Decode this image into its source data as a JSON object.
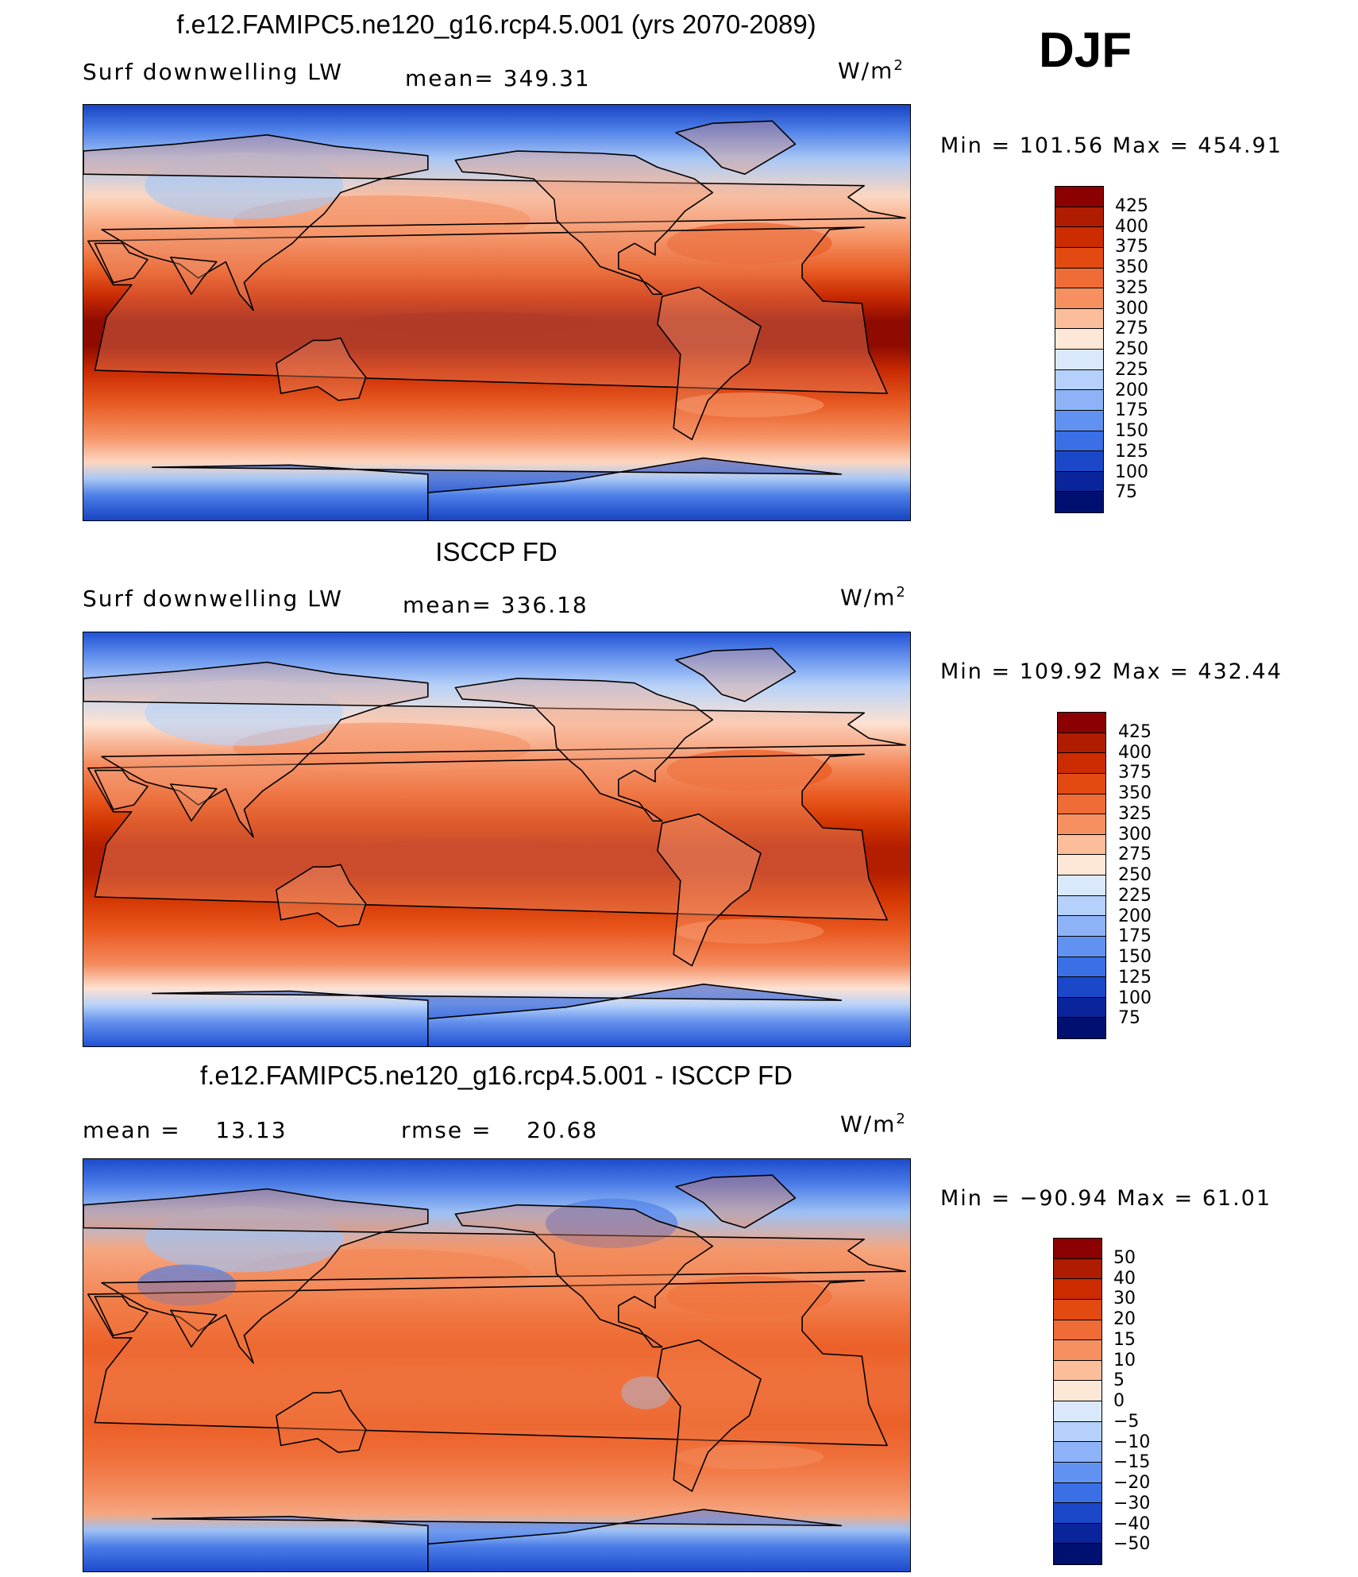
{
  "season": "DJF",
  "panels": [
    {
      "title": "f.e12.FAMIPC5.ne120_g16.rcp4.5.001 (yrs 2070-2089)",
      "left_label": "Surf downwelling LW",
      "center_label": "mean= 349.31",
      "unit_base": "W/m",
      "unit_exp": "2",
      "min_label": "Min",
      "min_value": "101.56",
      "max_label": "Max",
      "max_value": "454.91",
      "legend": [
        "425",
        "400",
        "375",
        "350",
        "325",
        "300",
        "275",
        "250",
        "225",
        "200",
        "175",
        "150",
        "125",
        "100",
        "75"
      ],
      "legend_colors": [
        "#8b0000",
        "#b01c00",
        "#cc2c00",
        "#e24a12",
        "#ef6c36",
        "#f69060",
        "#fbbd9a",
        "#fde7d7",
        "#d9e9fb",
        "#b4d0fb",
        "#8db2f8",
        "#6292f1",
        "#3a6fe6",
        "#1a48c9",
        "#0a259c",
        "#001070"
      ],
      "colors": {
        "eq": "#8f0b00",
        "trop": "#c92a02",
        "sub": "#e85b23",
        "mid": "#f69466",
        "high": "#fcd7c1",
        "cold": "#a8c7f5",
        "polar": "#4d7fe8",
        "ice": "#1744c2",
        "land": "#f09470"
      },
      "chart_data": {
        "type": "heatmap",
        "title": "f.e12.FAMIPC5.ne120_g16.rcp4.5.001 (yrs 2070-2089)",
        "variable": "Surf downwelling LW",
        "units": "W/m2",
        "mean": 349.31,
        "min": 101.56,
        "max": 454.91,
        "contour_levels": [
          75,
          100,
          125,
          150,
          175,
          200,
          225,
          250,
          275,
          300,
          325,
          350,
          375,
          400,
          425
        ]
      }
    },
    {
      "title": "ISCCP FD",
      "left_label": "Surf downwelling LW",
      "center_label": "mean= 336.18",
      "unit_base": "W/m",
      "unit_exp": "2",
      "min_label": "Min",
      "min_value": "109.92",
      "max_label": "Max",
      "max_value": "432.44",
      "legend": [
        "425",
        "400",
        "375",
        "350",
        "325",
        "300",
        "275",
        "250",
        "225",
        "200",
        "175",
        "150",
        "125",
        "100",
        "75"
      ],
      "legend_colors": [
        "#8b0000",
        "#b01c00",
        "#cc2c00",
        "#e24a12",
        "#ef6c36",
        "#f69060",
        "#fbbd9a",
        "#fde7d7",
        "#d9e9fb",
        "#b4d0fb",
        "#8db2f8",
        "#6292f1",
        "#3a6fe6",
        "#1a48c9",
        "#0a259c",
        "#001070"
      ],
      "colors": {
        "eq": "#b41e00",
        "trop": "#d23500",
        "sub": "#e9581f",
        "mid": "#f48a5c",
        "high": "#fde2d2",
        "cold": "#b8d2f8",
        "polar": "#6592ee",
        "ice": "#2152d4",
        "land": "#f6a37f"
      },
      "chart_data": {
        "type": "heatmap",
        "title": "ISCCP FD",
        "variable": "Surf downwelling LW",
        "units": "W/m2",
        "mean": 336.18,
        "min": 109.92,
        "max": 432.44,
        "contour_levels": [
          75,
          100,
          125,
          150,
          175,
          200,
          225,
          250,
          275,
          300,
          325,
          350,
          375,
          400,
          425
        ]
      }
    },
    {
      "title": "f.e12.FAMIPC5.ne120_g16.rcp4.5.001 - ISCCP FD",
      "left_label": "mean =    13.13",
      "center_label": "rmse =    20.68",
      "unit_base": "W/m",
      "unit_exp": "2",
      "min_label": "Min",
      "min_value": "−90.94",
      "max_label": "Max",
      "max_value": "61.01",
      "legend": [
        "50",
        "40",
        "30",
        "20",
        "15",
        "10",
        "5",
        "0",
        "−5",
        "−10",
        "−15",
        "−20",
        "−30",
        "−40",
        "−50"
      ],
      "legend_colors": [
        "#8b0000",
        "#b01c00",
        "#cc2c00",
        "#e24a12",
        "#ef6c36",
        "#f69060",
        "#fbbd9a",
        "#fde7d7",
        "#d9e9fb",
        "#b4d0fb",
        "#8db2f8",
        "#6292f1",
        "#3a6fe6",
        "#1a48c9",
        "#0a259c",
        "#001070"
      ],
      "colors": {
        "eq": "#ee6a35",
        "trop": "#ec5f28",
        "sub": "#ef6e38",
        "mid": "#f38a5c",
        "high": "#f6a67f",
        "cold": "#9ec1f4",
        "polar": "#4b7ce8",
        "ice": "#1d4bcc",
        "land": "#f07a45"
      },
      "chart_data": {
        "type": "heatmap",
        "title": "f.e12.FAMIPC5.ne120_g16.rcp4.5.001 - ISCCP FD",
        "units": "W/m2",
        "mean": 13.13,
        "rmse": 20.68,
        "min": -90.94,
        "max": 61.01,
        "contour_levels": [
          -50,
          -40,
          -30,
          -20,
          -15,
          -10,
          -5,
          0,
          5,
          10,
          15,
          20,
          30,
          40,
          50
        ]
      }
    }
  ]
}
